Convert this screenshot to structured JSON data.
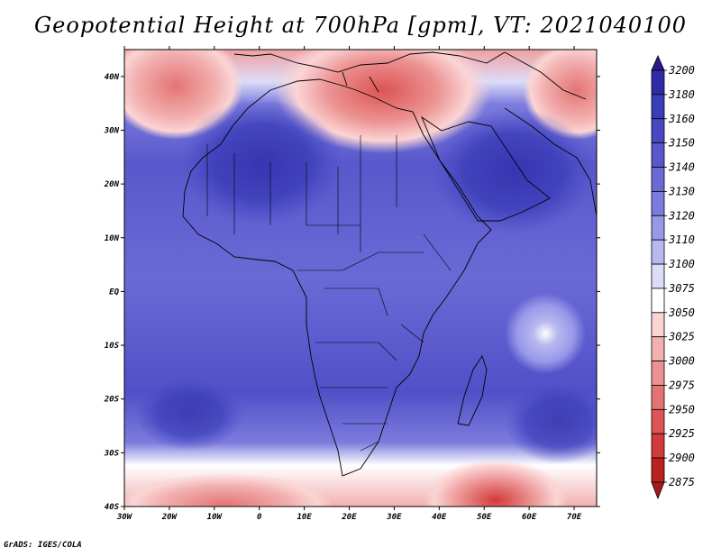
{
  "title": "Geopotential Height at 700hPa [gpm], VT: 2021040100",
  "footer": "GrADS: IGES/COLA",
  "axes": {
    "lon_labels": [
      "30W",
      "20W",
      "10W",
      "0",
      "10E",
      "20E",
      "30E",
      "40E",
      "50E",
      "60E",
      "70E"
    ],
    "lat_labels": [
      "40N",
      "30N",
      "20N",
      "10N",
      "EQ",
      "10S",
      "20S",
      "30S",
      "40S"
    ]
  },
  "map_data": {
    "variable": "Geopotential Height",
    "level": "700hPa",
    "units": "gpm",
    "valid_time": "2021040100",
    "lon_range": [
      -30,
      75
    ],
    "lat_range": [
      -40,
      45
    ]
  },
  "colorbar": {
    "levels": [
      "3200",
      "3180",
      "3160",
      "3150",
      "3140",
      "3130",
      "3120",
      "3110",
      "3100",
      "3075",
      "3050",
      "3025",
      "3000",
      "2975",
      "2950",
      "2925",
      "2900",
      "2875"
    ],
    "colors": [
      "#2a1a8c",
      "#2f2ca8",
      "#3a3db8",
      "#4848c4",
      "#5858cc",
      "#6a6ad6",
      "#7c7cde",
      "#9898e8",
      "#b8b8f0",
      "#dcdcf8",
      "#ffffff",
      "#fbd4d4",
      "#f2b0b0",
      "#ec9292",
      "#e47474",
      "#dc5454",
      "#d23a3a",
      "#bc2020",
      "#a81818"
    ]
  }
}
